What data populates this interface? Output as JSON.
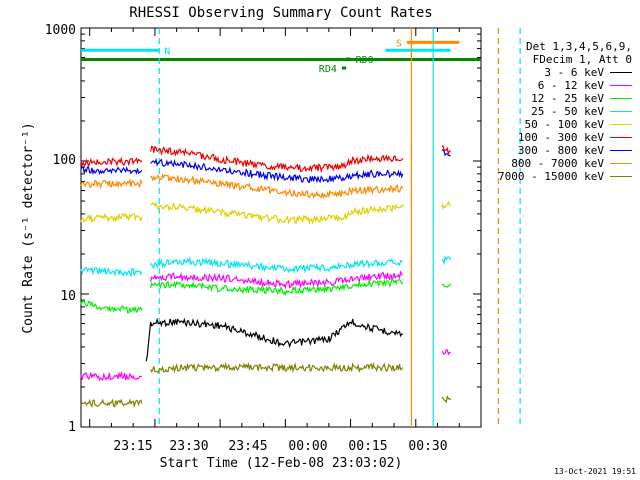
{
  "chart_data": {
    "type": "line",
    "title": "RHESSI Observing Summary Count Rates",
    "xlabel": "Start Time (12-Feb-08 23:03:02)",
    "ylabel": "Count Rate (s⁻¹ detector⁻¹)",
    "yscale": "log",
    "ylim": [
      1,
      1000
    ],
    "xlim_minutes": [
      -62,
      30
    ],
    "x_ticks": [
      {
        "m": -45,
        "label": "23:15"
      },
      {
        "m": -30,
        "label": "23:30"
      },
      {
        "m": -15,
        "label": "23:45"
      },
      {
        "m": 0,
        "label": "00:00"
      },
      {
        "m": 15,
        "label": "00:15"
      },
      {
        "m": 30,
        "label": "00:30"
      }
    ],
    "y_ticks": [
      {
        "v": 1,
        "label": "1"
      },
      {
        "v": 10,
        "label": "10"
      },
      {
        "v": 100,
        "label": "100"
      },
      {
        "v": 1000,
        "label": "1000"
      }
    ],
    "x_unit": "minutes relative to 00:00 UT",
    "legend_position": "right",
    "series": [
      {
        "name": "3 - 6 keV",
        "color": "#000000",
        "segments": [
          {
            "points": [
              [
                -47,
                3.0
              ],
              [
                -46,
                6.0
              ],
              [
                -40,
                6.2
              ],
              [
                -30,
                5.8
              ],
              [
                -15,
                4.2
              ],
              [
                -5,
                4.6
              ],
              [
                0,
                6.2
              ],
              [
                5,
                5.5
              ],
              [
                12,
                5.0
              ]
            ]
          },
          {
            "points": []
          }
        ]
      },
      {
        "name": "6 - 12 keV",
        "color": "#ff00ff",
        "segments": [
          {
            "points": [
              [
                -62,
                2.4
              ],
              [
                -48,
                2.4
              ]
            ]
          },
          {
            "points": [
              [
                -46,
                13.0
              ],
              [
                -42,
                13.5
              ],
              [
                -30,
                13.2
              ],
              [
                -15,
                11.8
              ],
              [
                -5,
                12.2
              ],
              [
                0,
                12.8
              ],
              [
                5,
                13.5
              ],
              [
                12,
                13.8
              ]
            ]
          },
          {
            "points": [
              [
                21,
                3.8
              ],
              [
                23,
                3.6
              ]
            ]
          }
        ]
      },
      {
        "name": "12 - 25 keV",
        "color": "#00ee00",
        "segments": [
          {
            "points": [
              [
                -62,
                8.5
              ],
              [
                -55,
                7.8
              ],
              [
                -48,
                7.5
              ]
            ]
          },
          {
            "points": [
              [
                -46,
                11.8
              ],
              [
                -40,
                11.8
              ],
              [
                -30,
                11.0
              ],
              [
                -15,
                10.5
              ],
              [
                -5,
                10.8
              ],
              [
                0,
                11.5
              ],
              [
                5,
                12.0
              ],
              [
                12,
                12.2
              ]
            ]
          },
          {
            "points": [
              [
                21,
                12.0
              ],
              [
                23,
                12.0
              ]
            ]
          }
        ]
      },
      {
        "name": "25 - 50 keV",
        "color": "#00e5ee",
        "segments": [
          {
            "points": [
              [
                -62,
                15.0
              ],
              [
                -48,
                14.5
              ]
            ]
          },
          {
            "points": [
              [
                -46,
                16.5
              ],
              [
                -40,
                17.5
              ],
              [
                -30,
                17.0
              ],
              [
                -15,
                15.5
              ],
              [
                -5,
                15.8
              ],
              [
                0,
                16.5
              ],
              [
                5,
                17.0
              ],
              [
                12,
                17.5
              ]
            ]
          },
          {
            "points": [
              [
                21,
                18.0
              ],
              [
                23,
                18.0
              ]
            ]
          }
        ]
      },
      {
        "name": "50 - 100 keV",
        "color": "#e0d000",
        "segments": [
          {
            "points": [
              [
                -62,
                37.0
              ],
              [
                -48,
                38.0
              ]
            ]
          },
          {
            "points": [
              [
                -46,
                46.0
              ],
              [
                -40,
                45.0
              ],
              [
                -30,
                41.0
              ],
              [
                -15,
                36.0
              ],
              [
                -5,
                37.0
              ],
              [
                -1,
                38.0
              ],
              [
                0,
                41.0
              ],
              [
                5,
                43.0
              ],
              [
                12,
                45.0
              ]
            ]
          },
          {
            "points": [
              [
                21,
                47.0
              ],
              [
                23,
                46.0
              ]
            ]
          }
        ]
      },
      {
        "name": "100 - 300 keV",
        "color": "#ee0000",
        "segments": [
          {
            "points": [
              [
                -62,
                97.0
              ],
              [
                -48,
                100.0
              ]
            ]
          },
          {
            "points": [
              [
                -46,
                122.0
              ],
              [
                -40,
                118.0
              ],
              [
                -30,
                103.0
              ],
              [
                -20,
                92.0
              ],
              [
                -10,
                88.0
              ],
              [
                -1,
                92.0
              ],
              [
                0,
                100.0
              ],
              [
                5,
                104.0
              ],
              [
                12,
                105.0
              ]
            ]
          },
          {
            "points": [
              [
                21,
                125.0
              ],
              [
                23,
                118.0
              ]
            ]
          }
        ]
      },
      {
        "name": "300 - 800 keV",
        "color": "#0000ee",
        "segments": [
          {
            "points": [
              [
                -62,
                86.0
              ],
              [
                -48,
                85.0
              ]
            ]
          },
          {
            "points": [
              [
                -46,
                98.0
              ],
              [
                -40,
                96.0
              ],
              [
                -30,
                87.0
              ],
              [
                -20,
                78.0
              ],
              [
                -10,
                73.0
              ],
              [
                -1,
                74.0
              ],
              [
                0,
                78.0
              ],
              [
                5,
                80.0
              ],
              [
                12,
                80.0
              ]
            ]
          },
          {
            "points": [
              [
                21,
                118.0
              ],
              [
                23,
                110.0
              ]
            ]
          }
        ]
      },
      {
        "name": "800 - 7000 keV",
        "color": "#ff8800",
        "segments": [
          {
            "points": [
              [
                -62,
                67.0
              ],
              [
                -48,
                68.0
              ]
            ]
          },
          {
            "points": [
              [
                -46,
                76.0
              ],
              [
                -40,
                74.0
              ],
              [
                -30,
                68.0
              ],
              [
                -20,
                61.0
              ],
              [
                -10,
                56.0
              ],
              [
                -1,
                57.0
              ],
              [
                0,
                60.0
              ],
              [
                5,
                61.0
              ],
              [
                12,
                62.0
              ]
            ]
          },
          {
            "points": []
          }
        ]
      },
      {
        "name": "7000 - 15000 keV",
        "color": "#808000",
        "segments": [
          {
            "points": [
              [
                -62,
                1.5
              ],
              [
                -48,
                1.5
              ]
            ]
          },
          {
            "points": [
              [
                -46,
                2.7
              ],
              [
                -40,
                2.8
              ],
              [
                -30,
                2.8
              ],
              [
                -15,
                2.8
              ],
              [
                -5,
                2.8
              ],
              [
                0,
                2.8
              ],
              [
                5,
                2.8
              ],
              [
                12,
                2.8
              ]
            ]
          },
          {
            "points": [
              [
                21,
                1.6
              ],
              [
                23,
                1.6
              ]
            ]
          }
        ]
      }
    ],
    "annotations": [
      {
        "type": "hbar",
        "label": "N",
        "color": "#00e5ee",
        "x0": -62,
        "x1": -44,
        "y": 680,
        "label_side": "right"
      },
      {
        "type": "hbar",
        "color": "#00e5ee",
        "x0": 8,
        "x1": 23,
        "y": 680
      },
      {
        "type": "hbar",
        "label": "S",
        "color": "#ff8800",
        "x0": 13,
        "x1": 25,
        "y": 780,
        "label_side": "left"
      },
      {
        "type": "hbar",
        "color": "#008800",
        "x0": -62,
        "x1": 30,
        "y": 580
      },
      {
        "type": "hbar",
        "label": "RD0",
        "color": "#008800",
        "x0": -1,
        "x1": 0,
        "y": 585,
        "label_side": "right"
      },
      {
        "type": "hbar",
        "label": "RD4",
        "color": "#008800",
        "x0": -2,
        "x1": -1,
        "y": 500,
        "label_side": "left"
      },
      {
        "type": "vline",
        "color": "#00e5ee",
        "dash": "6,4",
        "x": -44
      },
      {
        "type": "vline",
        "color": "#ff8800",
        "dash": "",
        "x": 14
      },
      {
        "type": "vline",
        "color": "#00e5ee",
        "dash": "",
        "x": 19
      },
      {
        "type": "vline",
        "color": "#ff8800",
        "dash": "6,4",
        "x": 34
      },
      {
        "type": "vline",
        "color": "#00e5ee",
        "dash": "6,4",
        "x": 39
      }
    ]
  },
  "legend": {
    "header_lines": [
      "Det 1,3,4,5,6,9,",
      "FDecim 1, Att 0"
    ],
    "items": [
      {
        "label": "3 - 6 keV",
        "color": "#000000"
      },
      {
        "label": "6 - 12 keV",
        "color": "#ff00ff"
      },
      {
        "label": "12 - 25 keV",
        "color": "#00ee00"
      },
      {
        "label": "25 - 50 keV",
        "color": "#00e5ee"
      },
      {
        "label": "50 - 100 keV",
        "color": "#e0d000"
      },
      {
        "label": "100 - 300 keV",
        "color": "#ee0000"
      },
      {
        "label": "300 - 800 keV",
        "color": "#0000ee"
      },
      {
        "label": "800 - 7000 keV",
        "color": "#ff8800"
      },
      {
        "label": "7000 - 15000 keV",
        "color": "#808000"
      }
    ]
  },
  "footer_date": "13-Oct-2021 19:51"
}
